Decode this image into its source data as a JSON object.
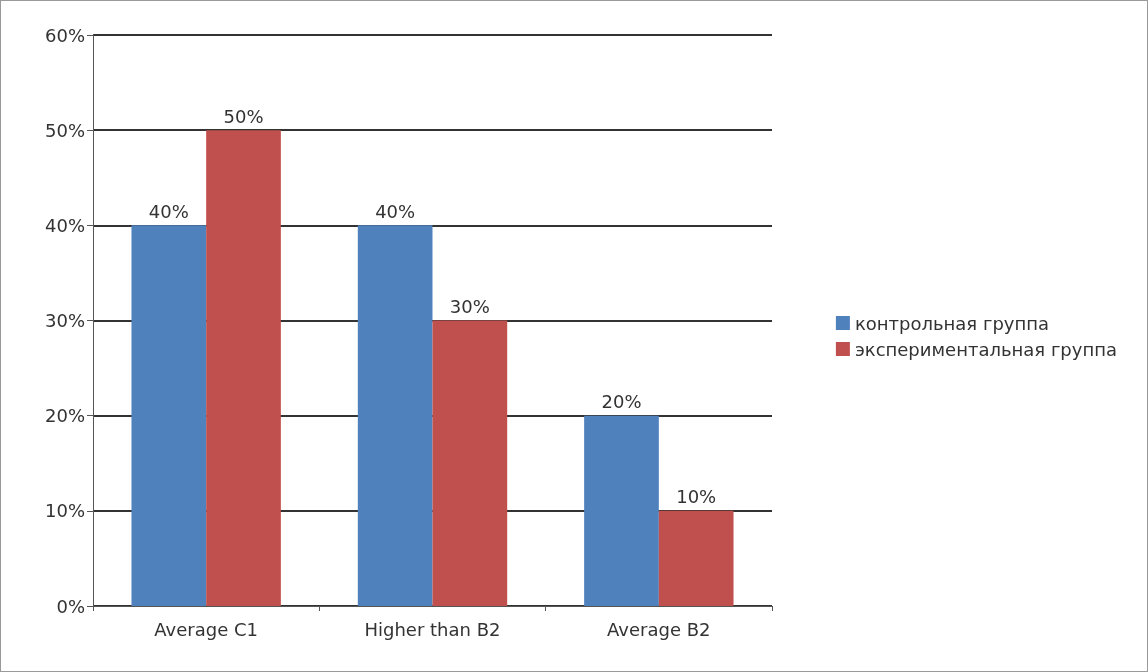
{
  "chart_data": {
    "type": "bar",
    "categories": [
      "Average C1",
      "Higher than B2",
      "Average B2"
    ],
    "series": [
      {
        "name": "контрольная группа",
        "color": "#4f81bd",
        "values": [
          40,
          40,
          20
        ],
        "value_labels": [
          "40%",
          "40%",
          "20%"
        ]
      },
      {
        "name": "экспериментальная группа",
        "color": "#c0504d",
        "values": [
          50,
          30,
          10
        ],
        "value_labels": [
          "50%",
          "30%",
          "10%"
        ]
      }
    ],
    "ylim": [
      0,
      60
    ],
    "yticks": [
      {
        "value": 0,
        "label": "0%"
      },
      {
        "value": 10,
        "label": "10%"
      },
      {
        "value": 20,
        "label": "20%"
      },
      {
        "value": 30,
        "label": "30%"
      },
      {
        "value": 40,
        "label": "40%"
      },
      {
        "value": 50,
        "label": "50%"
      },
      {
        "value": 60,
        "label": "60%"
      }
    ],
    "grid": "y",
    "legend": "right"
  }
}
